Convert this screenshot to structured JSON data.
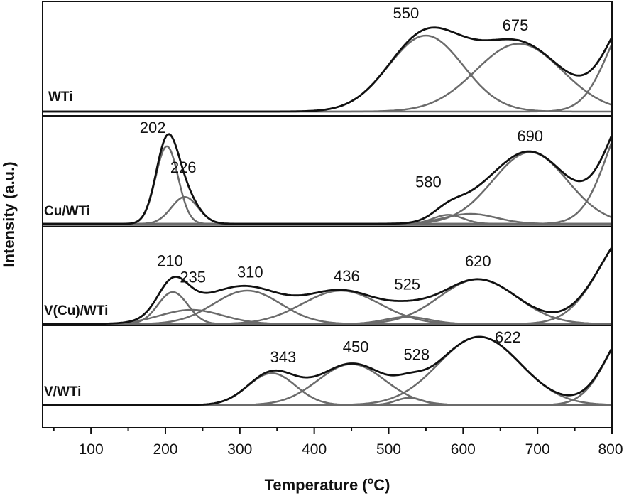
{
  "chart_data": {
    "type": "line",
    "xlabel": "Temperature (",
    "xlabel_sup": "o",
    "xlabel_end": "C)",
    "ylabel": "Intensity (a.u.)",
    "xlim": [
      35,
      800
    ],
    "xticks": [
      100,
      200,
      300,
      400,
      500,
      600,
      700,
      800
    ],
    "grid": false,
    "colors": {
      "envelope": "#111111",
      "component": "#6b6b6b"
    },
    "panels": [
      {
        "name": "WTi",
        "components": [
          {
            "center": 550,
            "width": 50,
            "height": 0.93
          },
          {
            "center": 675,
            "width": 58,
            "height": 0.83
          },
          {
            "center": 830,
            "width": 35,
            "height": 1.2
          }
        ],
        "peak_labels": [
          {
            "text": "550",
            "x": 550
          },
          {
            "text": "675",
            "x": 675
          }
        ]
      },
      {
        "name": "Cu/WTi",
        "components": [
          {
            "center": 202,
            "width": 15,
            "height": 0.78
          },
          {
            "center": 226,
            "width": 18,
            "height": 0.27
          },
          {
            "center": 580,
            "width": 20,
            "height": 0.09
          },
          {
            "center": 610,
            "width": 35,
            "height": 0.1
          },
          {
            "center": 690,
            "width": 50,
            "height": 0.72
          },
          {
            "center": 830,
            "width": 35,
            "height": 1.2
          }
        ],
        "peak_labels": [
          {
            "text": "202",
            "x": 202
          },
          {
            "text": "226",
            "x": 226
          },
          {
            "text": "580",
            "x": 580
          },
          {
            "text": "690",
            "x": 690
          }
        ]
      },
      {
        "name": "V(Cu)/WTi",
        "components": [
          {
            "center": 210,
            "width": 20,
            "height": 0.45
          },
          {
            "center": 235,
            "width": 42,
            "height": 0.2
          },
          {
            "center": 310,
            "width": 45,
            "height": 0.47
          },
          {
            "center": 436,
            "width": 52,
            "height": 0.47
          },
          {
            "center": 525,
            "width": 30,
            "height": 0.1
          },
          {
            "center": 620,
            "width": 52,
            "height": 0.63
          },
          {
            "center": 830,
            "width": 45,
            "height": 1.35
          }
        ],
        "peak_labels": [
          {
            "text": "210",
            "x": 210
          },
          {
            "text": "235",
            "x": 235
          },
          {
            "text": "310",
            "x": 310
          },
          {
            "text": "436",
            "x": 436
          },
          {
            "text": "525",
            "x": 525
          },
          {
            "text": "620",
            "x": 620
          }
        ]
      },
      {
        "name": "V/WTi",
        "components": [
          {
            "center": 343,
            "width": 32,
            "height": 0.35
          },
          {
            "center": 450,
            "width": 45,
            "height": 0.45
          },
          {
            "center": 528,
            "width": 18,
            "height": 0.08
          },
          {
            "center": 622,
            "width": 55,
            "height": 0.75
          },
          {
            "center": 830,
            "width": 35,
            "height": 0.9
          }
        ],
        "peak_labels": [
          {
            "text": "343",
            "x": 343
          },
          {
            "text": "450",
            "x": 450
          },
          {
            "text": "528",
            "x": 528
          },
          {
            "text": "622",
            "x": 622
          }
        ]
      }
    ]
  }
}
